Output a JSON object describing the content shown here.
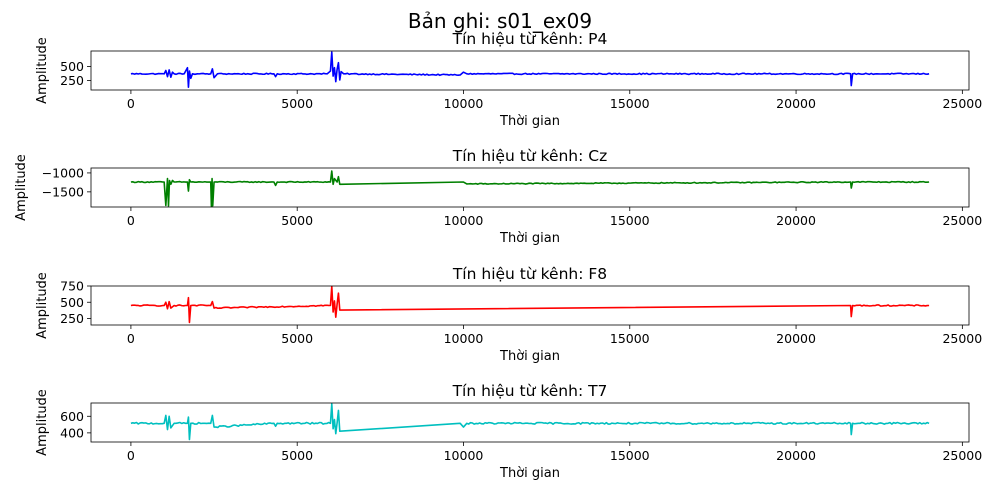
{
  "suptitle": "Bản ghi: s01_ex09",
  "chart_data": [
    {
      "type": "line",
      "title": "Tín hiệu từ kênh: P4",
      "xlabel": "Thời gian",
      "ylabel": "Amplitude",
      "color": "#0000ff",
      "xlim": [
        -1200,
        25200
      ],
      "ylim": [
        80,
        780
      ],
      "xticks": [
        0,
        5000,
        10000,
        15000,
        20000,
        25000
      ],
      "yticks": [
        250,
        500
      ],
      "baseline": 370,
      "noise": 10,
      "series": [
        {
          "x": [
            0,
            1000,
            1050,
            1100,
            1150,
            1200,
            1250,
            1300,
            1600,
            1700,
            1730,
            1760,
            1800,
            1850,
            2000,
            2400,
            2450,
            2500,
            2600,
            4300,
            4350,
            4400,
            5900,
            6000,
            6040,
            6080,
            6120,
            6160,
            6200,
            6240,
            6280,
            6320,
            6400,
            9900,
            10000,
            10100,
            21640,
            21660,
            21700,
            24000
          ],
          "y": [
            370,
            370,
            430,
            320,
            440,
            310,
            400,
            370,
            370,
            480,
            130,
            420,
            290,
            370,
            370,
            370,
            460,
            300,
            370,
            370,
            320,
            370,
            370,
            420,
            760,
            330,
            480,
            230,
            450,
            570,
            260,
            410,
            370,
            350,
            400,
            370,
            370,
            160,
            370,
            370
          ]
        }
      ]
    },
    {
      "type": "line",
      "title": "Tín hiệu từ kênh: Cz",
      "xlabel": "Thời gian",
      "ylabel": "Amplitude",
      "color": "#008000",
      "xlim": [
        -1200,
        25200
      ],
      "ylim": [
        -1900,
        -870
      ],
      "xticks": [
        0,
        5000,
        10000,
        15000,
        20000,
        25000
      ],
      "yticks": [
        -1500,
        -1000
      ],
      "baseline": -1240,
      "noise": 12,
      "series": [
        {
          "x": [
            0,
            1000,
            1050,
            1100,
            1130,
            1160,
            1200,
            1250,
            1300,
            1700,
            1730,
            1760,
            1800,
            2400,
            2420,
            2440,
            2460,
            2500,
            4300,
            4350,
            4400,
            6000,
            6040,
            6080,
            6120,
            6200,
            6240,
            6280,
            10000,
            10100,
            21640,
            21660,
            21700,
            24000
          ],
          "y": [
            -1240,
            -1240,
            -1860,
            -1150,
            -1870,
            -1200,
            -1300,
            -1200,
            -1240,
            -1240,
            -1480,
            -1180,
            -1240,
            -1240,
            -1880,
            -1150,
            -1870,
            -1240,
            -1240,
            -1330,
            -1240,
            -1240,
            -950,
            -1300,
            -1150,
            -1240,
            -1100,
            -1300,
            -1240,
            -1290,
            -1240,
            -1400,
            -1240,
            -1240
          ]
        }
      ]
    },
    {
      "type": "line",
      "title": "Tín hiệu từ kênh: F8",
      "xlabel": "Thời gian",
      "ylabel": "Amplitude",
      "color": "#ff0000",
      "xlim": [
        -1200,
        25200
      ],
      "ylim": [
        150,
        750
      ],
      "xticks": [
        0,
        5000,
        10000,
        15000,
        20000,
        25000
      ],
      "yticks": [
        250,
        500,
        750
      ],
      "baseline": 450,
      "noise": 9,
      "series": [
        {
          "x": [
            0,
            1000,
            1050,
            1100,
            1150,
            1200,
            1300,
            1700,
            1730,
            1760,
            1800,
            2400,
            2450,
            2500,
            6000,
            6040,
            6080,
            6120,
            6160,
            6200,
            6240,
            6280,
            21640,
            21660,
            21700,
            24000
          ],
          "y": [
            450,
            450,
            500,
            400,
            510,
            410,
            450,
            450,
            570,
            190,
            450,
            450,
            510,
            410,
            450,
            745,
            350,
            520,
            270,
            470,
            640,
            380,
            450,
            280,
            450,
            450
          ]
        }
      ]
    },
    {
      "type": "line",
      "title": "Tín hiệu từ kênh: T7",
      "xlabel": "Thời gian",
      "ylabel": "Amplitude",
      "color": "#00bfbf",
      "xlim": [
        -1200,
        25200
      ],
      "ylim": [
        290,
        760
      ],
      "xticks": [
        0,
        5000,
        10000,
        15000,
        20000,
        25000
      ],
      "yticks": [
        400,
        600
      ],
      "baseline": 515,
      "noise": 10,
      "series": [
        {
          "x": [
            0,
            1000,
            1050,
            1100,
            1150,
            1200,
            1300,
            1700,
            1730,
            1760,
            1800,
            2400,
            2450,
            2500,
            4300,
            4350,
            4400,
            6000,
            6040,
            6080,
            6120,
            6160,
            6200,
            6240,
            6280,
            9900,
            10000,
            10100,
            21640,
            21660,
            21700,
            24000
          ],
          "y": [
            515,
            515,
            610,
            440,
            600,
            460,
            515,
            515,
            590,
            320,
            515,
            515,
            610,
            470,
            515,
            480,
            515,
            515,
            750,
            450,
            560,
            390,
            520,
            670,
            420,
            515,
            470,
            515,
            515,
            380,
            515,
            515
          ]
        }
      ]
    }
  ]
}
